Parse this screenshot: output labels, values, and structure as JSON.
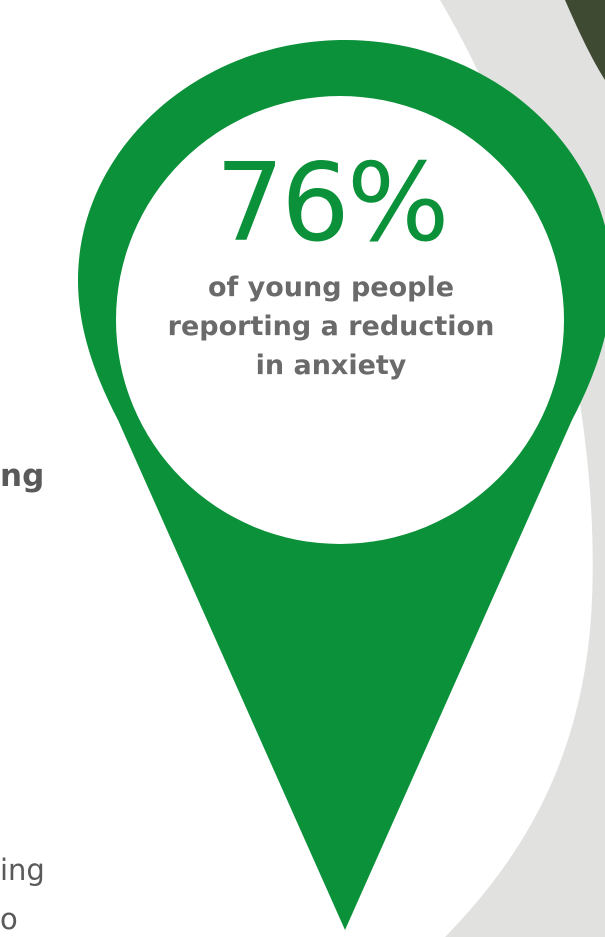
{
  "stat": {
    "number": "76%",
    "caption_line_1": "of young people",
    "caption_line_2": "reporting a reduction",
    "caption_line_3": "in anxiety"
  },
  "side_text": {
    "bold_fragment": "ng",
    "line_fragment_1": "ing",
    "line_fragment_2": "o"
  },
  "colors": {
    "pin_green": "#0b9139",
    "circle_fill": "#ffffff",
    "background_arc": "#e1e2e0",
    "photo_corner": "#3e4a32",
    "text_gray": "#5a5a5a"
  },
  "icons": {
    "pin": "map-pin-icon"
  }
}
